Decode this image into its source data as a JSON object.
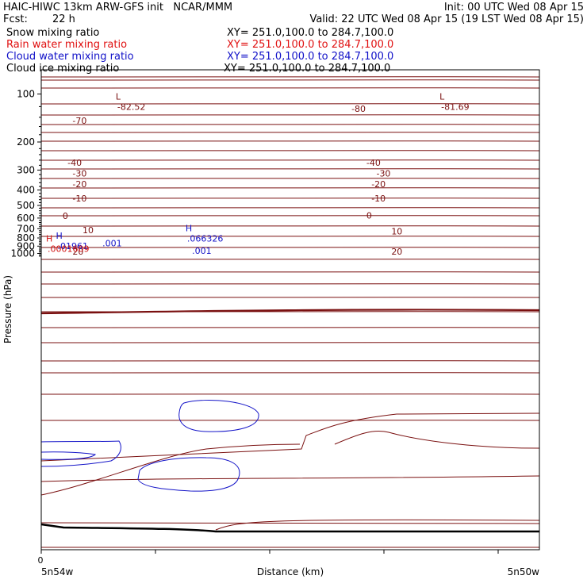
{
  "header": {
    "title_left": "HAIC-HIWC 13km ARW-GFS init   NCAR/MMM",
    "init": "Init: 00 UTC Wed 08 Apr 15",
    "fcst_label": "Fcst:",
    "fcst_value": "22 h",
    "valid": "Valid: 22 UTC Wed 08 Apr 15 (19 LST Wed 08 Apr 15)"
  },
  "fields": [
    {
      "name": "Snow mixing ratio",
      "xy": "XY= 251.0,100.0 to 284.7,100.0",
      "color": "#000000"
    },
    {
      "name": "Rain water mixing ratio",
      "xy": "XY= 251.0,100.0 to 284.7,100.0",
      "color": "#e01010"
    },
    {
      "name": "Cloud water mixing ratio",
      "xy": "XY= 251.0,100.0 to 284.7,100.0",
      "color": "#1010c8"
    },
    {
      "name": "Cloud ice mixing ratio",
      "xy": "XY= 251.0,100.0 to 284.7,100.0",
      "color": "#000000"
    }
  ],
  "chart_data": {
    "type": "line",
    "ylabel": "Pressure (hPa)",
    "xlabel": "Distance (km)",
    "x_left_label": "5n54w",
    "x_right_label": "5n50w",
    "x_origin_label": "0",
    "yticks": [
      100,
      200,
      300,
      400,
      500,
      600,
      700,
      800,
      900,
      1000
    ],
    "colors": {
      "temperature": "#7a1010",
      "cloud_water": "#1414c8",
      "rain_water": "#d01010",
      "ground": "#000000"
    },
    "temperature_labels": [
      {
        "text": "-82.52",
        "x": 0.14,
        "p": 115,
        "mark": "L"
      },
      {
        "text": "-81.69",
        "x": 0.79,
        "p": 115,
        "mark": "L"
      },
      {
        "text": "-80",
        "x": 0.61,
        "p": 118
      },
      {
        "text": "-70",
        "x": 0.05,
        "p": 140
      },
      {
        "text": "-40",
        "x": 0.04,
        "p": 258
      },
      {
        "text": "-40",
        "x": 0.64,
        "p": 258
      },
      {
        "text": "-30",
        "x": 0.05,
        "p": 300
      },
      {
        "text": "-30",
        "x": 0.66,
        "p": 300
      },
      {
        "text": "-20",
        "x": 0.05,
        "p": 350
      },
      {
        "text": "-20",
        "x": 0.65,
        "p": 350
      },
      {
        "text": "-10",
        "x": 0.05,
        "p": 430
      },
      {
        "text": "-10",
        "x": 0.65,
        "p": 430
      },
      {
        "text": "0",
        "x": 0.03,
        "p": 555
      },
      {
        "text": "0",
        "x": 0.64,
        "p": 550
      },
      {
        "text": "10",
        "x": 0.07,
        "p": 680
      },
      {
        "text": "10",
        "x": 0.69,
        "p": 695
      },
      {
        "text": "20",
        "x": 0.05,
        "p": 930
      },
      {
        "text": "20",
        "x": 0.69,
        "p": 930
      }
    ],
    "cloud_water_labels": [
      {
        "text": ".001",
        "x": 0.11,
        "p": 825
      },
      {
        "text": ".001",
        "x": 0.29,
        "p": 920
      },
      {
        "text": ".066326",
        "x": 0.28,
        "p": 770,
        "mark": "H"
      },
      {
        "text": ".01961",
        "x": 0.02,
        "p": 855,
        "mark": "H"
      }
    ],
    "rain_water_labels": [
      {
        "text": ".0001609",
        "x": 0.0,
        "p": 890,
        "mark": "H"
      }
    ]
  }
}
